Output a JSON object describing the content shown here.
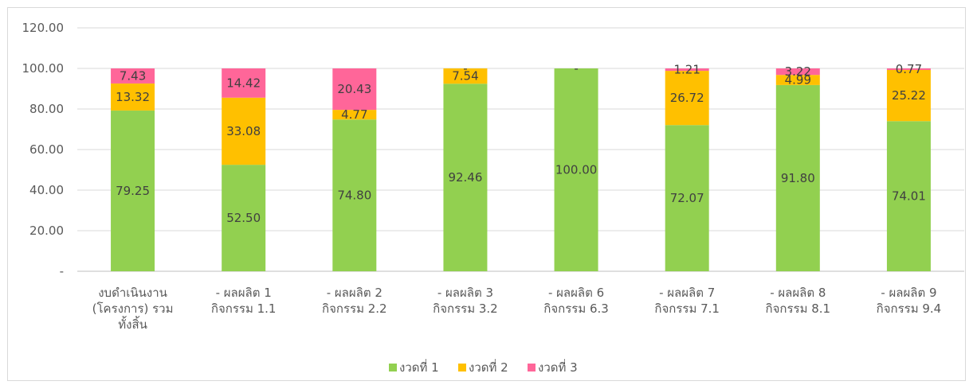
{
  "chart_data": {
    "type": "bar",
    "stacked": true,
    "categories": [
      [
        "งบดำเนินงาน",
        "(โครงการ) รวม",
        "ทั้งสิ้น"
      ],
      [
        "- ผลผลิต 1",
        "กิจกรรม 1.1"
      ],
      [
        "- ผลผลิต 2",
        "กิจกรรม 2.2"
      ],
      [
        "- ผลผลิต 3",
        "กิจกรรม 3.2"
      ],
      [
        "- ผลผลิต 6",
        "กิจกรรม 6.3"
      ],
      [
        "- ผลผลิต 7",
        "กิจกรรม 7.1"
      ],
      [
        "- ผลผลิต 8",
        "กิจกรรม 8.1"
      ],
      [
        "- ผลผลิต 9",
        "กิจกรรม 9.4"
      ]
    ],
    "series": [
      {
        "name": "งวดที่ 1",
        "color": "#92d050",
        "values": [
          79.25,
          52.5,
          74.8,
          92.46,
          100.0,
          72.07,
          91.8,
          74.01
        ],
        "labels": [
          "79.25",
          "52.50",
          "74.80",
          "92.46",
          "100.00",
          "72.07",
          "91.80",
          "74.01"
        ]
      },
      {
        "name": "งวดที่ 2",
        "color": "#ffc000",
        "values": [
          13.32,
          33.08,
          4.77,
          7.54,
          0,
          26.72,
          4.99,
          25.22
        ],
        "labels": [
          "13.32",
          "33.08",
          "4.77",
          "7.54",
          "-",
          "26.72",
          "4.99",
          "25.22"
        ]
      },
      {
        "name": "งวดที่ 3",
        "color": "#ff6699",
        "values": [
          7.43,
          14.42,
          20.43,
          0,
          0,
          1.21,
          3.22,
          0.77
        ],
        "labels": [
          "7.43",
          "14.42",
          "20.43",
          "-",
          "",
          "1.21",
          "3.22",
          "0.77"
        ]
      }
    ],
    "yticks": [
      "-",
      "20.00",
      "40.00",
      "60.00",
      "80.00",
      "100.00",
      "120.00"
    ],
    "ylim": [
      0,
      120
    ],
    "grid": true,
    "legend_position": "bottom"
  }
}
